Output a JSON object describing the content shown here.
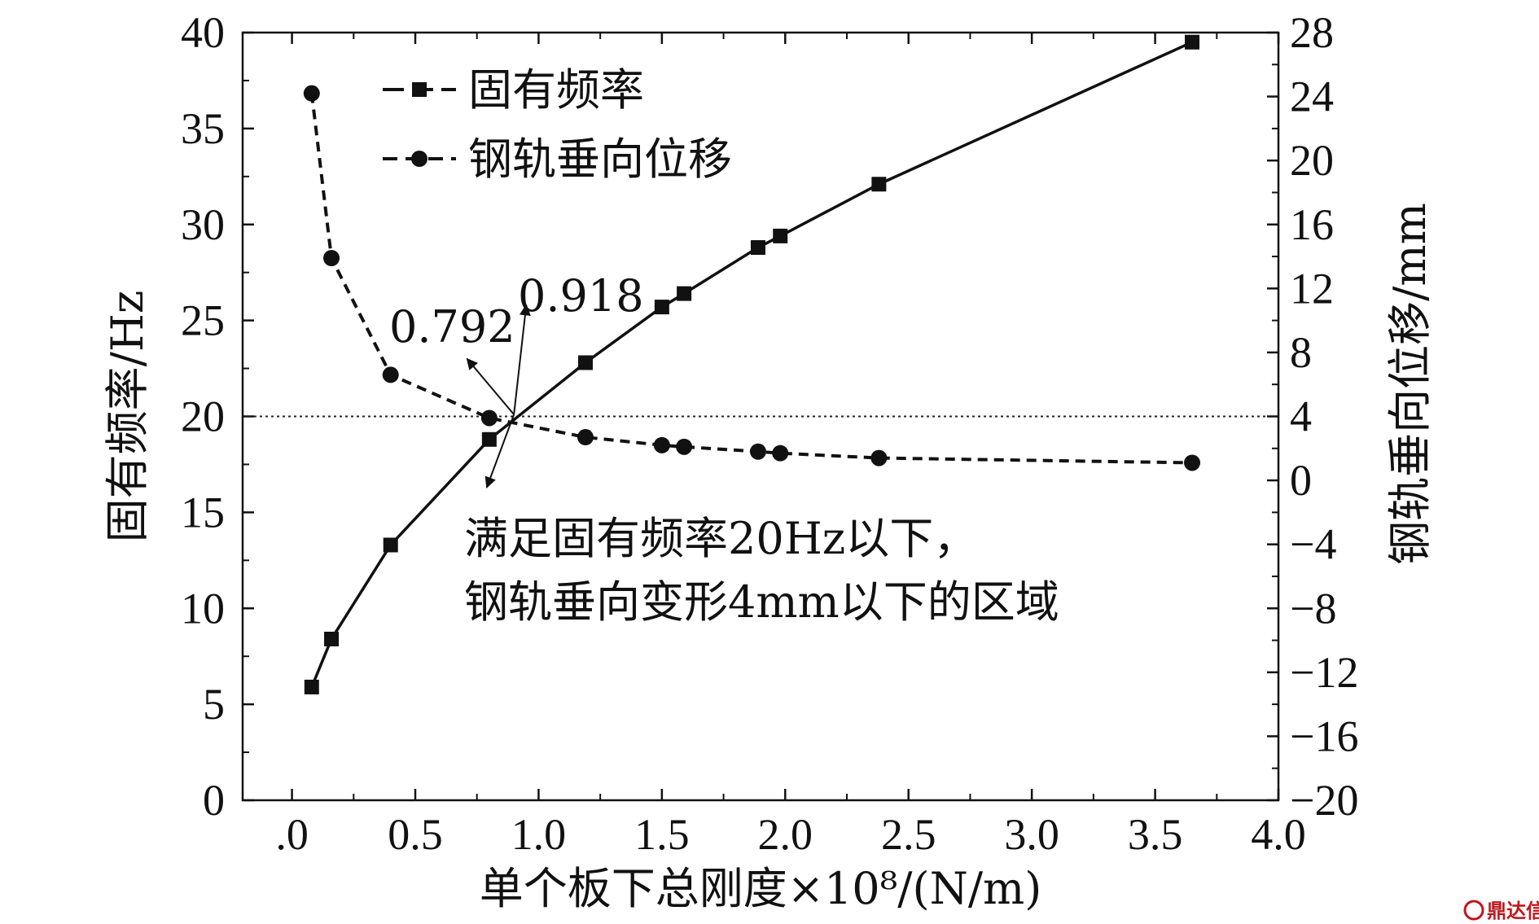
{
  "chart_data": {
    "type": "line",
    "xlabel": "单个板下总刚度×10⁸/(N/m)",
    "ylabel_left": "固有频率/Hz",
    "ylabel_right": "钢轨垂向位移/mm",
    "xlim": [
      -0.2,
      4.0
    ],
    "ylim_left": [
      0,
      40
    ],
    "ylim_right": [
      -20,
      28
    ],
    "x_ticks": [
      ".0",
      "0.5",
      "1.0",
      "1.5",
      "2.0",
      "2.5",
      "3.0",
      "3.5",
      "4.0"
    ],
    "x_tick_values": [
      0,
      0.5,
      1.0,
      1.5,
      2.0,
      2.5,
      3.0,
      3.5,
      4.0
    ],
    "y_left_ticks": [
      "0",
      "5",
      "10",
      "15",
      "20",
      "25",
      "30",
      "35",
      "40"
    ],
    "y_left_tick_values": [
      0,
      5,
      10,
      15,
      20,
      25,
      30,
      35,
      40
    ],
    "y_right_ticks": [
      "−20",
      "−16",
      "−12",
      "−8",
      "−4",
      "0",
      "4",
      "8",
      "12",
      "16",
      "20",
      "24",
      "28"
    ],
    "y_right_tick_values": [
      -20,
      -16,
      -12,
      -8,
      -4,
      0,
      4,
      8,
      12,
      16,
      20,
      24,
      28
    ],
    "legend_position": "top-left",
    "series": [
      {
        "name": "固有频率",
        "axis": "left",
        "marker": "square",
        "line": "solid",
        "x": [
          0.08,
          0.16,
          0.4,
          0.8,
          1.19,
          1.5,
          1.59,
          1.89,
          1.98,
          2.38,
          3.65
        ],
        "y": [
          5.9,
          8.4,
          13.3,
          18.8,
          22.8,
          25.7,
          26.4,
          28.8,
          29.4,
          32.1,
          39.5
        ]
      },
      {
        "name": "钢轨垂向位移",
        "axis": "right",
        "marker": "circle",
        "line": "dashed",
        "x": [
          0.08,
          0.16,
          0.4,
          0.8,
          1.19,
          1.5,
          1.59,
          1.89,
          1.98,
          2.38,
          3.65
        ],
        "y": [
          24.2,
          13.9,
          6.6,
          3.9,
          2.7,
          2.2,
          2.1,
          1.8,
          1.7,
          1.4,
          1.1
        ]
      }
    ],
    "reference_line": {
      "axis": "left",
      "y": 20,
      "style": "dotted"
    },
    "annotations": {
      "label_a": "0.792",
      "label_b": "0.918",
      "region_line1": "满足固有频率20Hz以下，",
      "region_line2": "钢轨垂向变形4mm以下的区域"
    }
  },
  "watermark": "鼎达信"
}
